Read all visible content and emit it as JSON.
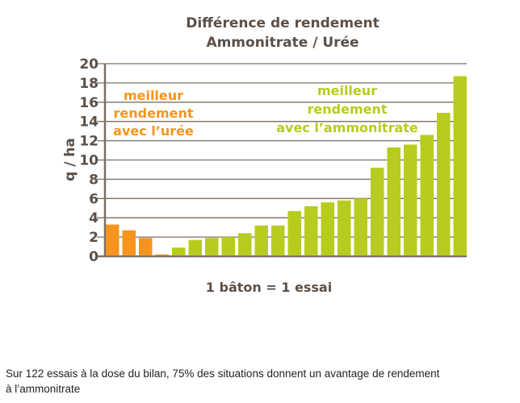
{
  "chart_data": {
    "type": "bar",
    "title": [
      "Différence de rendement",
      "Ammonitrate / Urée"
    ],
    "ylabel": "q / ha",
    "xlabel": "1 bâton = 1 essai",
    "ylim": [
      0,
      20
    ],
    "yticks": [
      "0",
      "2",
      "4",
      "6",
      "8",
      "10",
      "12",
      "14",
      "16",
      "18",
      "20"
    ],
    "grid": true,
    "colors": {
      "uree": "#F7941D",
      "ammonitrate": "#B7CC1E",
      "text": "#5b5048",
      "grid": "#7d6f63"
    },
    "series": [
      {
        "group": "uree",
        "values": [
          3.3,
          2.7,
          1.9,
          0.2
        ]
      },
      {
        "group": "ammonitrate",
        "values": [
          0.9,
          1.7,
          1.9,
          2.0,
          2.4,
          3.2,
          3.2,
          4.7,
          5.2,
          5.6,
          5.8,
          6.0,
          9.2,
          11.3,
          11.6,
          12.6,
          14.9,
          18.7
        ]
      }
    ],
    "annotations": {
      "uree": [
        "meilleur",
        "rendement",
        "avec l’urée"
      ],
      "ammonitrate": [
        "meilleur",
        "rendement",
        "avec l’ammonitrate"
      ]
    }
  },
  "caption": [
    "Sur 122 essais à la dose du bilan, 75% des situations donnent un avantage de rendement",
    "à l’ammonitrate"
  ]
}
